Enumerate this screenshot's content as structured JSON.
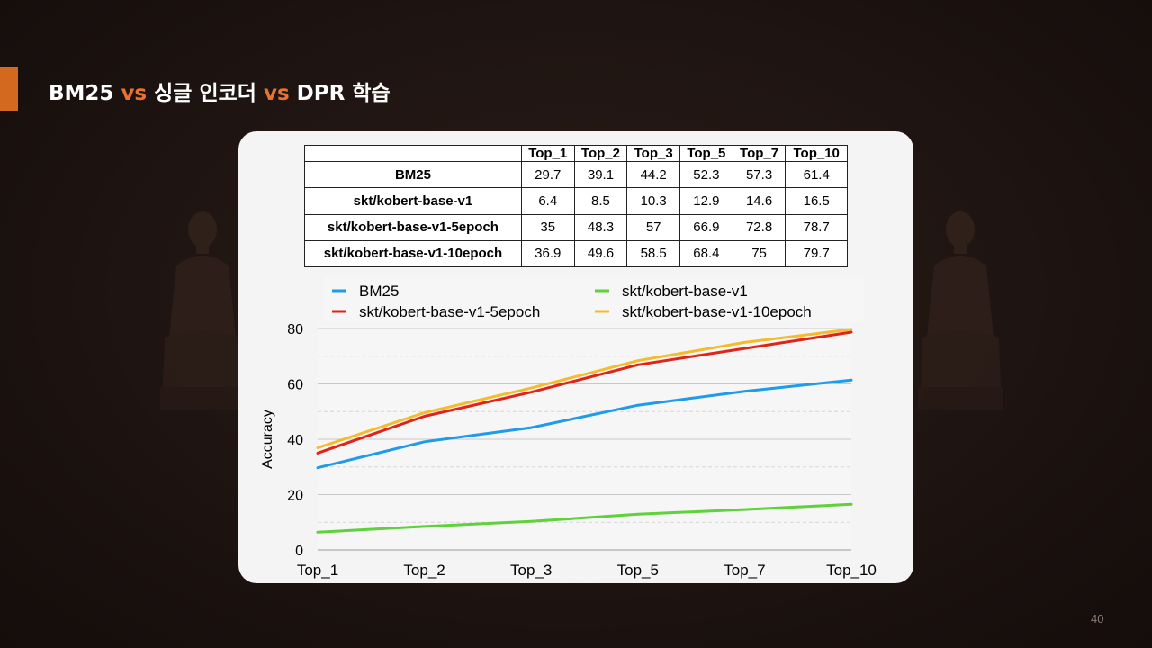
{
  "slide": {
    "title_parts": [
      "BM25 ",
      "vs",
      " 싱글 인코더 ",
      "vs",
      " DPR 학습"
    ],
    "page_number": "40",
    "accent_color": "#d2691e",
    "highlight_color": "#e8732c"
  },
  "table": {
    "corner": "",
    "columns": [
      "Top_1",
      "Top_2",
      "Top_3",
      "Top_5",
      "Top_7",
      "Top_10"
    ],
    "rows": [
      {
        "label": "BM25",
        "values": [
          "29.7",
          "39.1",
          "44.2",
          "52.3",
          "57.3",
          "61.4"
        ]
      },
      {
        "label": "skt/kobert-base-v1",
        "values": [
          "6.4",
          "8.5",
          "10.3",
          "12.9",
          "14.6",
          "16.5"
        ]
      },
      {
        "label": "skt/kobert-base-v1-5epoch",
        "values": [
          "35",
          "48.3",
          "57",
          "66.9",
          "72.8",
          "78.7"
        ]
      },
      {
        "label": "skt/kobert-base-v1-10epoch",
        "values": [
          "36.9",
          "49.6",
          "58.5",
          "68.4",
          "75",
          "79.7"
        ]
      }
    ]
  },
  "chart_data": {
    "type": "line",
    "categories": [
      "Top_1",
      "Top_2",
      "Top_3",
      "Top_5",
      "Top_7",
      "Top_10"
    ],
    "series": [
      {
        "name": "BM25",
        "color": "#1e9be9",
        "values": [
          29.7,
          39.1,
          44.2,
          52.3,
          57.3,
          61.4
        ]
      },
      {
        "name": "skt/kobert-base-v1",
        "color": "#5fd13b",
        "values": [
          6.4,
          8.5,
          10.3,
          12.9,
          14.6,
          16.5
        ]
      },
      {
        "name": "skt/kobert-base-v1-5epoch",
        "color": "#e0241b",
        "values": [
          35,
          48.3,
          57,
          66.9,
          72.8,
          78.7
        ]
      },
      {
        "name": "skt/kobert-base-v1-10epoch",
        "color": "#f4bc2c",
        "values": [
          36.9,
          49.6,
          58.5,
          68.4,
          75,
          79.7
        ]
      }
    ],
    "legend_order": [
      0,
      1,
      2,
      3
    ],
    "title": "",
    "xlabel": "",
    "ylabel": "Accuracy",
    "ylim": [
      0,
      80
    ],
    "yticks": [
      0,
      20,
      40,
      60,
      80
    ],
    "grid": true,
    "legend_position": "top"
  }
}
